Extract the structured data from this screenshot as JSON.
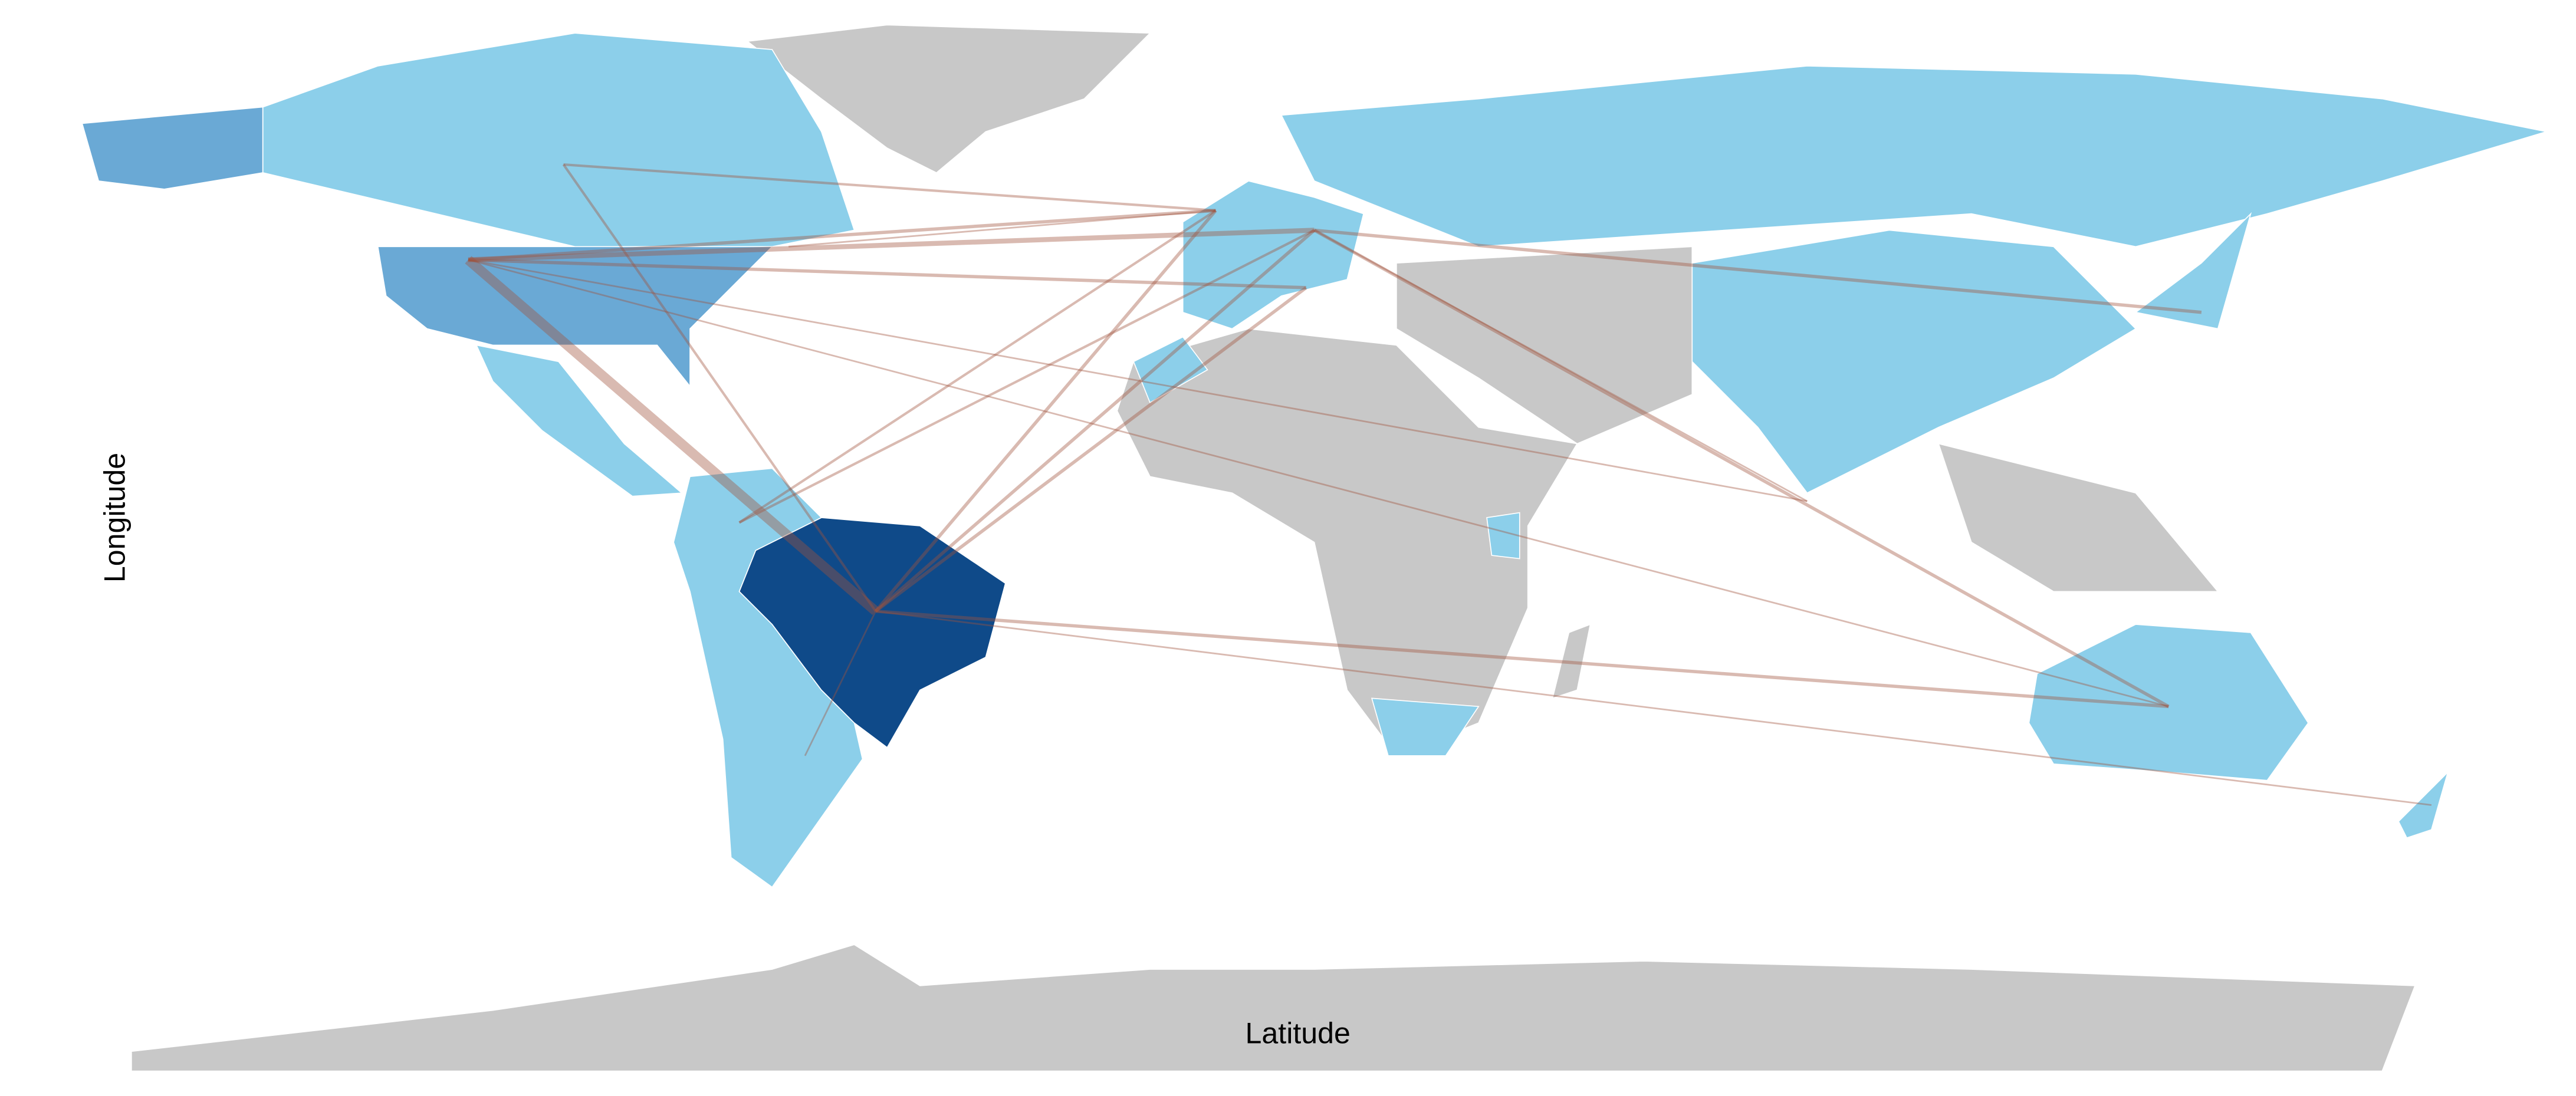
{
  "axis_labels": {
    "y": "Longitude",
    "x": "Latitude"
  }
}
